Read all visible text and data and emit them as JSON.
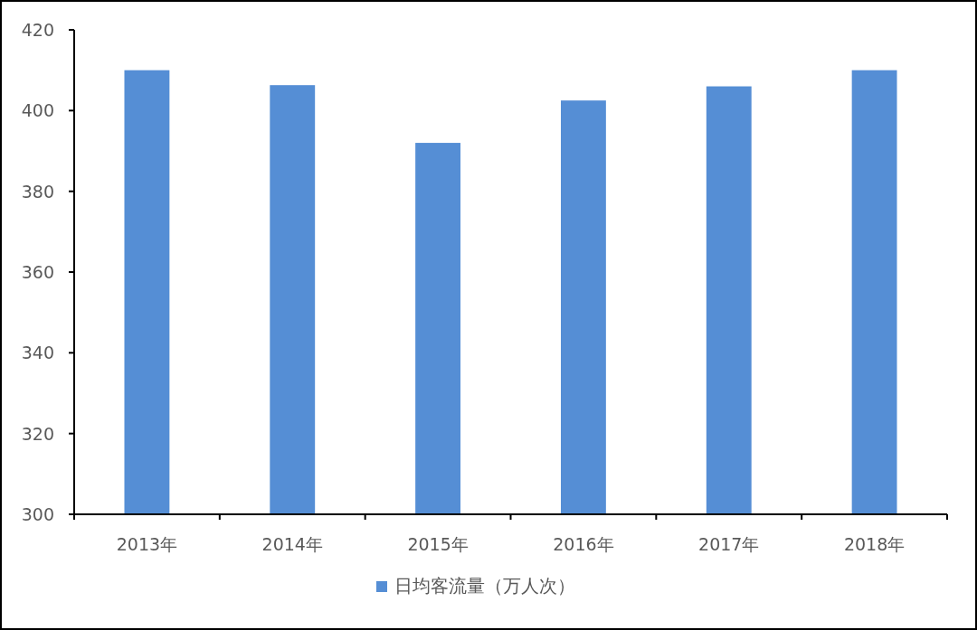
{
  "chart_data": {
    "type": "bar",
    "categories": [
      "2013年",
      "2014年",
      "2015年",
      "2016年",
      "2017年",
      "2018年"
    ],
    "series": [
      {
        "name": "日均客流量（万人次）",
        "color": "#558ed5",
        "values": [
          410,
          406.3,
          392,
          402.5,
          406,
          410
        ]
      }
    ],
    "ylim": [
      300,
      420
    ],
    "yticks": [
      300,
      320,
      340,
      360,
      380,
      400,
      420
    ],
    "grid": false,
    "legend": "bottom"
  }
}
